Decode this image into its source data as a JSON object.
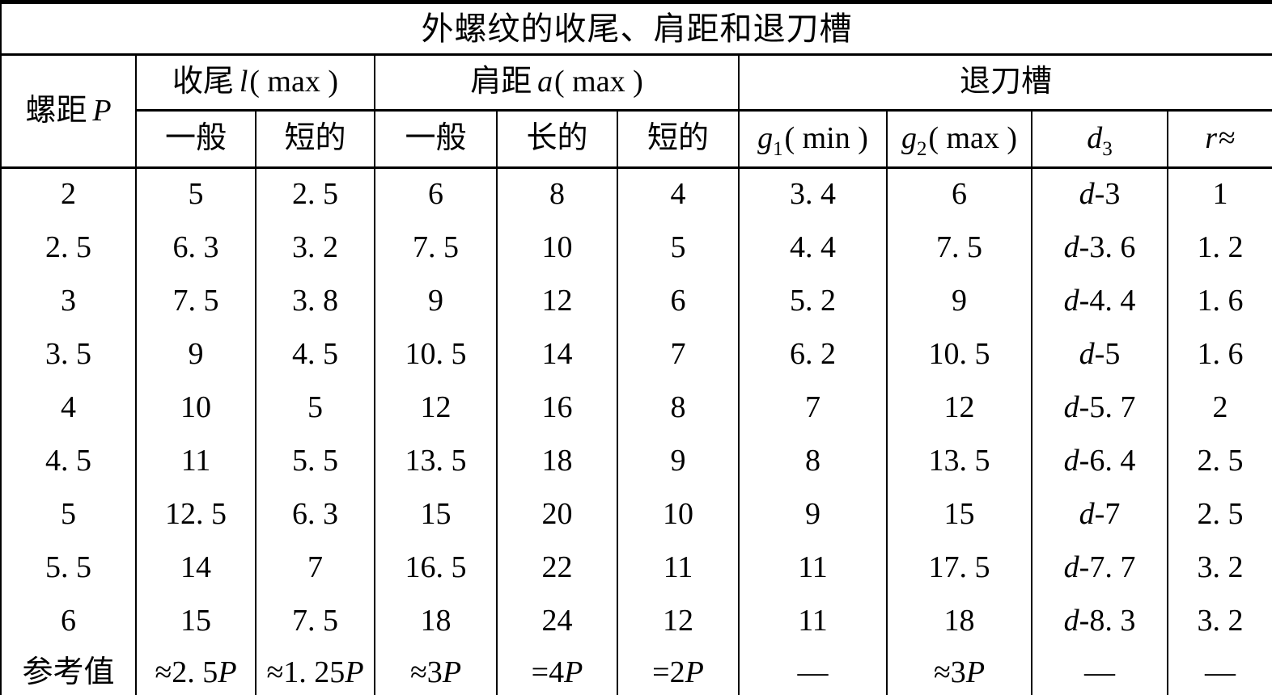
{
  "title": "外螺纹的收尾、肩距和退刀槽",
  "table": {
    "p_label": {
      "text": "螺距",
      "var": "P"
    },
    "groups": [
      {
        "text": "收尾",
        "var": "l",
        "suffix": "( max )"
      },
      {
        "text": "肩距",
        "var": "a",
        "suffix": "( max )"
      },
      {
        "text": "退刀槽"
      }
    ],
    "subheaders": [
      {
        "text": "一般"
      },
      {
        "text": "短的"
      },
      {
        "text": "一般"
      },
      {
        "text": "长的"
      },
      {
        "text": "短的"
      },
      {
        "var": "g",
        "sub": "1",
        "suffix": "( min )"
      },
      {
        "var": "g",
        "sub": "2",
        "suffix": "( max )"
      },
      {
        "var": "d",
        "sub": "3"
      },
      {
        "var": "r",
        "suffix": "≈"
      }
    ],
    "rows": [
      [
        "2",
        "5",
        "2. 5",
        "6",
        "8",
        "4",
        "3. 4",
        "6",
        "d-3",
        "1"
      ],
      [
        "2. 5",
        "6. 3",
        "3. 2",
        "7. 5",
        "10",
        "5",
        "4. 4",
        "7. 5",
        "d-3. 6",
        "1. 2"
      ],
      [
        "3",
        "7. 5",
        "3. 8",
        "9",
        "12",
        "6",
        "5. 2",
        "9",
        "d-4. 4",
        "1. 6"
      ],
      [
        "3. 5",
        "9",
        "4. 5",
        "10. 5",
        "14",
        "7",
        "6. 2",
        "10. 5",
        "d-5",
        "1. 6"
      ],
      [
        "4",
        "10",
        "5",
        "12",
        "16",
        "8",
        "7",
        "12",
        "d-5. 7",
        "2"
      ],
      [
        "4. 5",
        "11",
        "5. 5",
        "13. 5",
        "18",
        "9",
        "8",
        "13. 5",
        "d-6. 4",
        "2. 5"
      ],
      [
        "5",
        "12. 5",
        "6. 3",
        "15",
        "20",
        "10",
        "9",
        "15",
        "d-7",
        "2. 5"
      ],
      [
        "5. 5",
        "14",
        "7",
        "16. 5",
        "22",
        "11",
        "11",
        "17. 5",
        "d-7. 7",
        "3. 2"
      ],
      [
        "6",
        "15",
        "7. 5",
        "18",
        "24",
        "12",
        "11",
        "18",
        "d-8. 3",
        "3. 2"
      ],
      [
        "参考值",
        "≈2. 5P",
        "≈1. 25P",
        "≈3P",
        "=4P",
        "=2P",
        "—",
        "≈3P",
        "—",
        "—"
      ]
    ]
  },
  "colors": {
    "line": "#000000",
    "text": "#000000",
    "background": "#ffffff"
  }
}
